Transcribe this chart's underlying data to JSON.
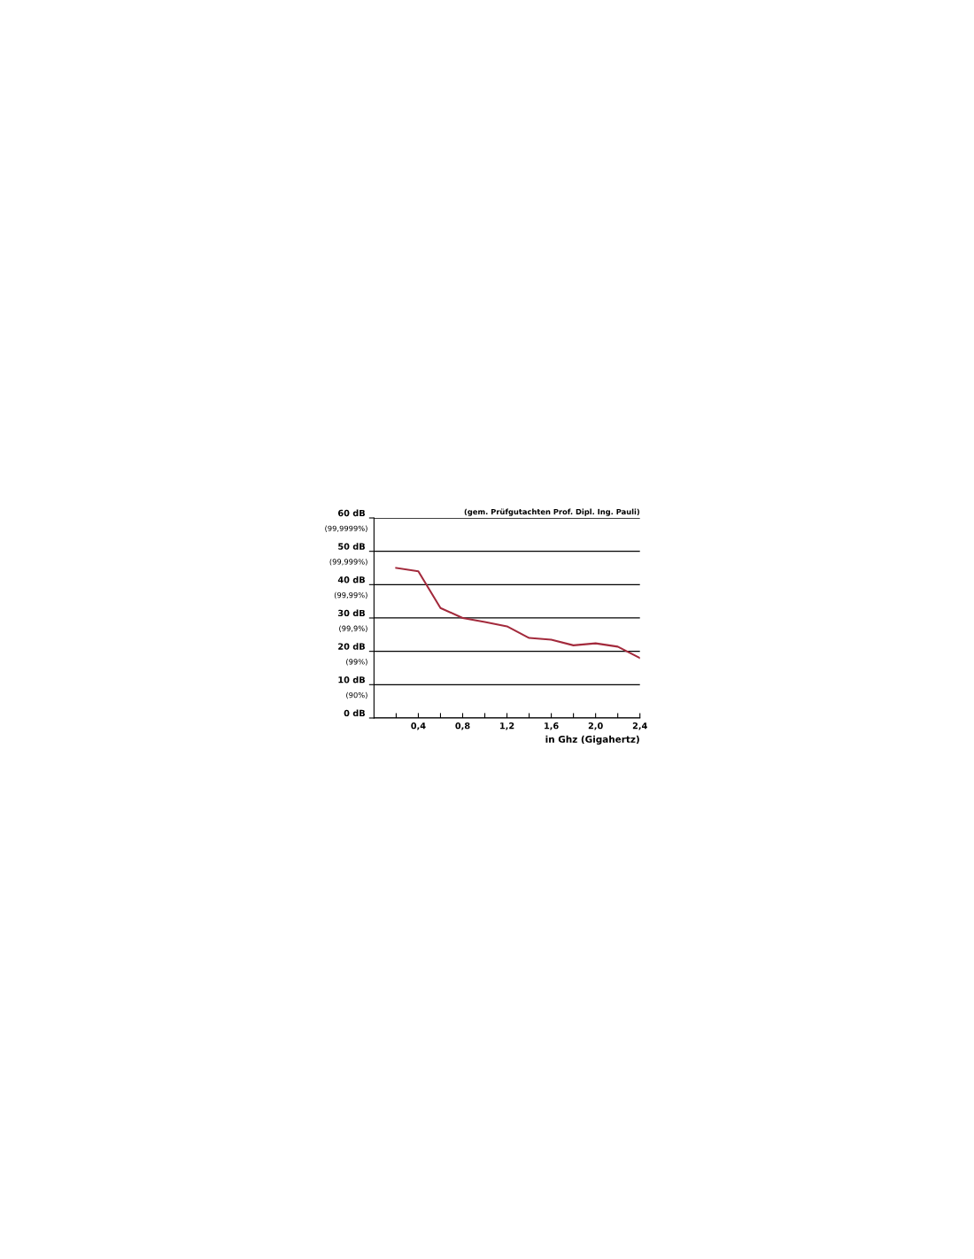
{
  "chart_data": {
    "type": "line",
    "xlabel": "in Ghz (Gigahertz)",
    "annotations": [
      "(gem. Prüfgutachten Prof. Dipl. Ing. Pauli)",
      "(90%)",
      "(99%)",
      "(99,9%)",
      "(99,99%)",
      "(99,999%)",
      "(99,9999%)"
    ],
    "x": [
      0.2,
      0.4,
      0.6,
      0.8,
      1.0,
      1.2,
      1.4,
      1.6,
      1.8,
      2.0,
      2.2,
      2.4
    ],
    "series": [
      {
        "color": "#a32a3c",
        "values": [
          45,
          44,
          33,
          30,
          28.8,
          27.5,
          24,
          23.5,
          21.8,
          22.4,
          21.4,
          18
        ]
      }
    ],
    "xlim": [
      0,
      2.4
    ],
    "xticks": [
      {
        "value": 0.2,
        "label": null
      },
      {
        "value": 0.4,
        "label": "0,4"
      },
      {
        "value": 0.6,
        "label": null
      },
      {
        "value": 0.8,
        "label": "0,8"
      },
      {
        "value": 1.0,
        "label": null
      },
      {
        "value": 1.2,
        "label": "1,2"
      },
      {
        "value": 1.4,
        "label": null
      },
      {
        "value": 1.6,
        "label": "1,6"
      },
      {
        "value": 1.8,
        "label": null
      },
      {
        "value": 2.0,
        "label": "2,0"
      },
      {
        "value": 2.2,
        "label": null
      },
      {
        "value": 2.4,
        "label": "2,4"
      }
    ],
    "ylim": [
      0,
      60
    ],
    "yticks": [
      {
        "value": 0,
        "label": "0 dB"
      },
      {
        "value": 10,
        "label": "10 dB"
      },
      {
        "value": 20,
        "label": "20 dB"
      },
      {
        "value": 30,
        "label": "30 dB"
      },
      {
        "value": 40,
        "label": "40 dB"
      },
      {
        "value": 50,
        "label": "50 dB"
      },
      {
        "value": 60,
        "label": "60 dB"
      }
    ],
    "grid": "y",
    "legend": false,
    "marker": "none",
    "line_style": "solid"
  }
}
